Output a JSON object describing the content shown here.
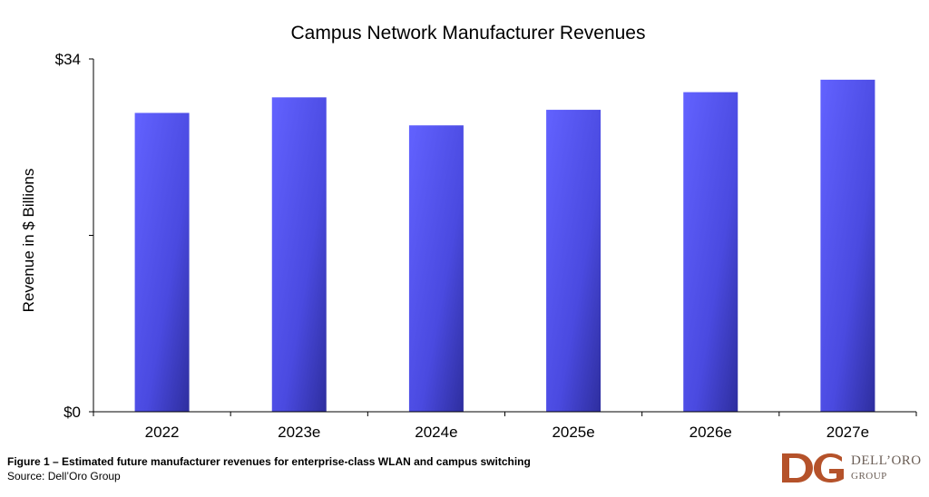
{
  "chart_data": {
    "type": "bar",
    "title": "Campus Network Manufacturer Revenues",
    "ylabel": "Revenue in $ Billions",
    "xlabel": "",
    "categories": [
      "2022",
      "2023e",
      "2024e",
      "2025e",
      "2026e",
      "2027e"
    ],
    "values": [
      28.8,
      30.3,
      27.6,
      29.1,
      30.8,
      32.0
    ],
    "ylim": [
      0,
      34
    ],
    "ytick_labels": [
      "$0",
      "",
      "$34"
    ],
    "ytick_values": [
      0,
      17,
      34
    ],
    "bar_color": "#5c5cf5",
    "grid": false,
    "legend": "none"
  },
  "caption": {
    "title": "Figure 1 – Estimated future manufacturer revenues for enterprise-class WLAN and campus switching",
    "source": "Source: Dell’Oro Group"
  },
  "logo": {
    "line1": "DELL’ORO",
    "line2": "GROUP",
    "color": "#b5522a"
  }
}
